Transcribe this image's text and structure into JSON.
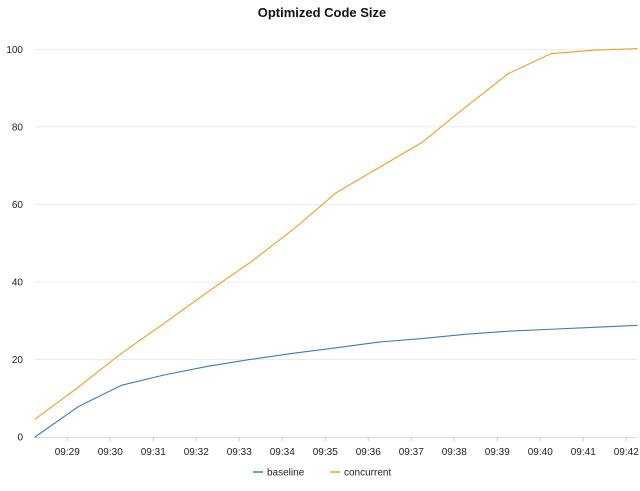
{
  "chart_data": {
    "type": "line",
    "title": "Optimized Code Size",
    "xlabel": "",
    "ylabel": "",
    "ylim": [
      0,
      105
    ],
    "yticks": [
      0,
      20,
      40,
      60,
      80,
      100
    ],
    "xlim": [
      "09:28:15",
      "09:42:15"
    ],
    "xticks": [
      "09:29",
      "09:30",
      "09:31",
      "09:32",
      "09:33",
      "09:34",
      "09:35",
      "09:36",
      "09:37",
      "09:38",
      "09:39",
      "09:40",
      "09:41",
      "09:42"
    ],
    "grid": true,
    "legend_position": "bottom-center",
    "x": [
      "09:28:15",
      "09:29:15",
      "09:30:15",
      "09:31:15",
      "09:32:15",
      "09:33:15",
      "09:34:15",
      "09:35:15",
      "09:36:15",
      "09:37:15",
      "09:38:15",
      "09:39:15",
      "09:40:15",
      "09:41:15",
      "09:42:15"
    ],
    "series": [
      {
        "name": "baseline",
        "color": "#3a7fb0",
        "values": [
          0,
          7.8,
          13.3,
          16.0,
          18.2,
          20.0,
          21.6,
          23.0,
          24.5,
          25.4,
          26.5,
          27.3,
          27.8,
          28.3,
          28.8
        ]
      },
      {
        "name": "concurrent",
        "color": "#f39c21",
        "values": [
          4.6,
          12.8,
          21.5,
          29.3,
          37.3,
          45.0,
          53.5,
          63.0,
          69.5,
          76.0,
          85.0,
          93.7,
          98.9,
          99.8,
          100.2
        ]
      }
    ]
  }
}
